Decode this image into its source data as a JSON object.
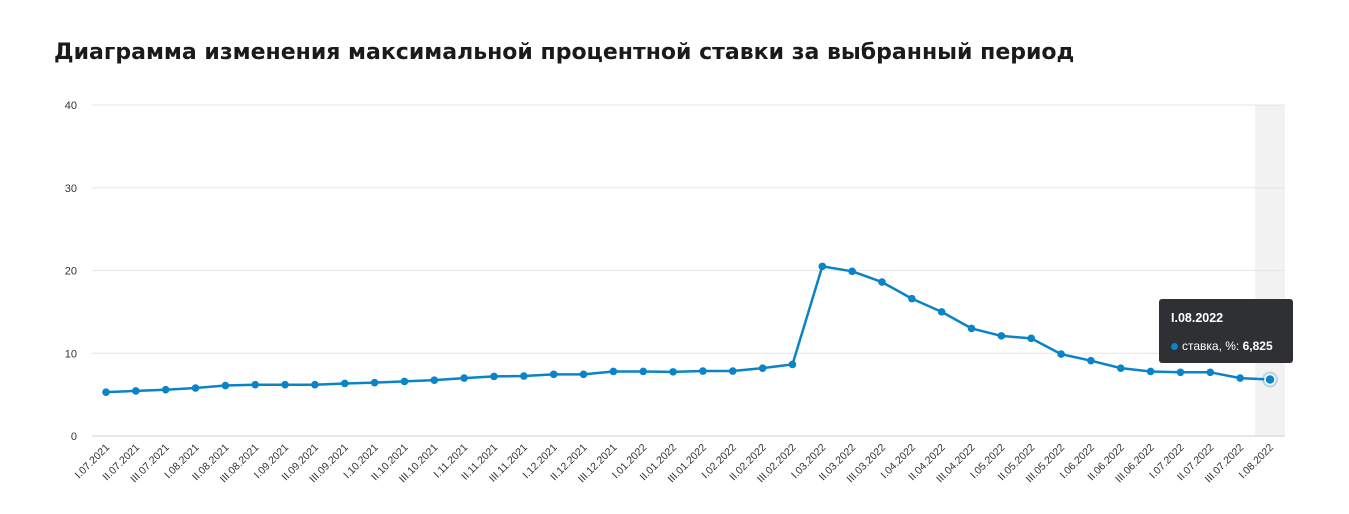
{
  "chart_data": {
    "type": "line",
    "title": "Диаграмма изменения максимальной процентной ставки за выбранный период",
    "xlabel": "",
    "ylabel": "",
    "ylim": [
      0,
      40
    ],
    "yticks": [
      0,
      10,
      20,
      30,
      40
    ],
    "grid": true,
    "categories": [
      "I.07.2021",
      "II.07.2021",
      "III.07.2021",
      "I.08.2021",
      "II.08.2021",
      "III.08.2021",
      "I.09.2021",
      "II.09.2021",
      "III.09.2021",
      "I.10.2021",
      "II.10.2021",
      "III.10.2021",
      "I.11.2021",
      "II.11.2021",
      "III.11.2021",
      "I.12.2021",
      "II.12.2021",
      "III.12.2021",
      "I.01.2022",
      "II.01.2022",
      "III.01.2022",
      "I.02.2022",
      "II.02.2022",
      "III.02.2022",
      "I.03.2022",
      "II.03.2022",
      "III.03.2022",
      "I.04.2022",
      "II.04.2022",
      "III.04.2022",
      "I.05.2022",
      "II.05.2022",
      "III.05.2022",
      "I.06.2022",
      "II.06.2022",
      "III.06.2022",
      "I.07.2022",
      "II.07.2022",
      "III.07.2022",
      "I.08.2022"
    ],
    "series": [
      {
        "name": "ставка, %",
        "color": "#0a84c6",
        "values": [
          5.3,
          5.45,
          5.6,
          5.8,
          6.1,
          6.2,
          6.2,
          6.2,
          6.35,
          6.45,
          6.6,
          6.75,
          7.0,
          7.2,
          7.25,
          7.45,
          7.45,
          7.8,
          7.8,
          7.75,
          7.85,
          7.85,
          8.2,
          8.65,
          20.5,
          19.9,
          18.6,
          16.6,
          15.0,
          13.0,
          12.1,
          11.8,
          9.9,
          9.1,
          8.2,
          7.8,
          7.7,
          7.7,
          7.0,
          6.825
        ]
      }
    ],
    "highlight": {
      "category": "I.08.2022",
      "series_label": "ставка, %:",
      "value_label": "6,825"
    }
  },
  "colors": {
    "line": "#0a84c6",
    "grid": "#e6e6e6",
    "highlight_band": "#f2f2f2",
    "tooltip_bg": "#2f3033"
  }
}
